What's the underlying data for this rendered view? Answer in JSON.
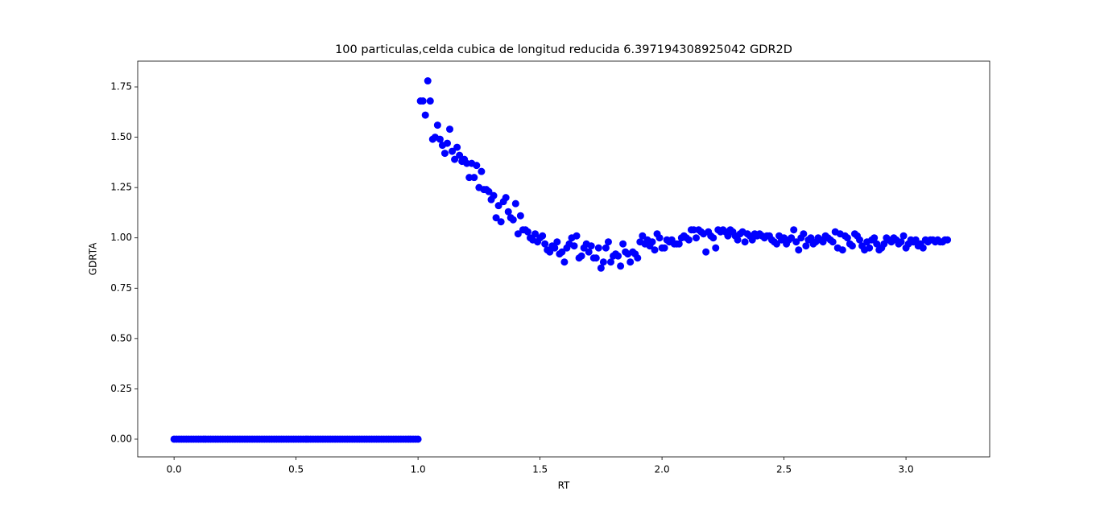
{
  "chart_data": {
    "type": "scatter",
    "title": "100 particulas,celda cubica de longitud reducida 6.397194308925042 GDR2D",
    "x_label": "RT",
    "y_label": "GDRTA",
    "color": "#0000ff",
    "xlim": [
      -0.149,
      3.343
    ],
    "ylim": [
      -0.088,
      1.878
    ],
    "xticks": [
      {
        "value": 0,
        "label": "0.0"
      },
      0.5,
      {
        "value": 1,
        "label": "1.0"
      },
      1.5,
      {
        "value": 2,
        "label": "2.0"
      },
      2.5,
      {
        "value": 3,
        "label": "3.0"
      }
    ],
    "yticks": [
      {
        "value": 0,
        "label": "0.00"
      },
      0.25,
      {
        "value": 0.5,
        "label": "0.50"
      },
      0.75,
      {
        "value": 1,
        "label": "1.00"
      },
      1.25,
      {
        "value": 1.5,
        "label": "1.50"
      },
      1.75
    ],
    "x": [
      0,
      0.01,
      0.02,
      0.03,
      0.04,
      0.05,
      0.06,
      0.07,
      0.08,
      0.09,
      0.1,
      0.11,
      0.12,
      0.13,
      0.14,
      0.15,
      0.16,
      0.17,
      0.18,
      0.19,
      0.2,
      0.21,
      0.22,
      0.23,
      0.24,
      0.25,
      0.26,
      0.27,
      0.28,
      0.29,
      0.3,
      0.31,
      0.32,
      0.33,
      0.34,
      0.35,
      0.36,
      0.37,
      0.38,
      0.39,
      0.4,
      0.41,
      0.42,
      0.43,
      0.44,
      0.45,
      0.46,
      0.47,
      0.48,
      0.49,
      0.5,
      0.51,
      0.52,
      0.53,
      0.54,
      0.55,
      0.56,
      0.57,
      0.58,
      0.59,
      0.6,
      0.61,
      0.62,
      0.63,
      0.64,
      0.65,
      0.66,
      0.67,
      0.68,
      0.69,
      0.7,
      0.71,
      0.72,
      0.73,
      0.74,
      0.75,
      0.76,
      0.77,
      0.78,
      0.79,
      0.8,
      0.81,
      0.82,
      0.83,
      0.84,
      0.85,
      0.86,
      0.87,
      0.88,
      0.89,
      0.9,
      0.91,
      0.92,
      0.93,
      0.94,
      0.95,
      0.96,
      0.97,
      0.98,
      0.99,
      1,
      1.01,
      1.02,
      1.03,
      1.04,
      1.05,
      1.06,
      1.07,
      1.08,
      1.09,
      1.1,
      1.11,
      1.12,
      1.13,
      1.14,
      1.15,
      1.16,
      1.17,
      1.18,
      1.19,
      1.2,
      1.21,
      1.22,
      1.23,
      1.24,
      1.25,
      1.26,
      1.27,
      1.28,
      1.29,
      1.3,
      1.31,
      1.32,
      1.33,
      1.34,
      1.35,
      1.36,
      1.37,
      1.38,
      1.39,
      1.4,
      1.41,
      1.42,
      1.43,
      1.44,
      1.45,
      1.46,
      1.47,
      1.48,
      1.49,
      1.5,
      1.51,
      1.52,
      1.53,
      1.54,
      1.55,
      1.56,
      1.57,
      1.58,
      1.59,
      1.6,
      1.61,
      1.62,
      1.63,
      1.64,
      1.65,
      1.66,
      1.67,
      1.68,
      1.69,
      1.7,
      1.71,
      1.72,
      1.73,
      1.74,
      1.75,
      1.76,
      1.77,
      1.78,
      1.79,
      1.8,
      1.81,
      1.82,
      1.83,
      1.84,
      1.85,
      1.86,
      1.87,
      1.88,
      1.89,
      1.9,
      1.91,
      1.92,
      1.93,
      1.94,
      1.95,
      1.96,
      1.97,
      1.98,
      1.99,
      2,
      2.01,
      2.02,
      2.03,
      2.04,
      2.05,
      2.06,
      2.07,
      2.08,
      2.09,
      2.1,
      2.11,
      2.12,
      2.13,
      2.14,
      2.15,
      2.16,
      2.17,
      2.18,
      2.19,
      2.2,
      2.21,
      2.22,
      2.23,
      2.24,
      2.25,
      2.26,
      2.27,
      2.28,
      2.29,
      2.3,
      2.31,
      2.32,
      2.33,
      2.34,
      2.35,
      2.36,
      2.37,
      2.38,
      2.39,
      2.4,
      2.41,
      2.42,
      2.43,
      2.44,
      2.45,
      2.46,
      2.47,
      2.48,
      2.49,
      2.5,
      2.51,
      2.52,
      2.53,
      2.54,
      2.55,
      2.56,
      2.57,
      2.58,
      2.59,
      2.6,
      2.61,
      2.62,
      2.63,
      2.64,
      2.65,
      2.66,
      2.67,
      2.68,
      2.69,
      2.7,
      2.71,
      2.72,
      2.73,
      2.74,
      2.75,
      2.76,
      2.77,
      2.78,
      2.79,
      2.8,
      2.81,
      2.82,
      2.83,
      2.84,
      2.85,
      2.86,
      2.87,
      2.88,
      2.89,
      2.9,
      2.91,
      2.92,
      2.93,
      2.94,
      2.95,
      2.96,
      2.97,
      2.98,
      2.99,
      3,
      3.01,
      3.02,
      3.03,
      3.04,
      3.05,
      3.06,
      3.07,
      3.08,
      3.09,
      3.1,
      3.11,
      3.12,
      3.13,
      3.14,
      3.15,
      3.16,
      3.17
    ],
    "values": [
      0,
      0,
      0,
      0,
      0,
      0,
      0,
      0,
      0,
      0,
      0,
      0,
      0,
      0,
      0,
      0,
      0,
      0,
      0,
      0,
      0,
      0,
      0,
      0,
      0,
      0,
      0,
      0,
      0,
      0,
      0,
      0,
      0,
      0,
      0,
      0,
      0,
      0,
      0,
      0,
      0,
      0,
      0,
      0,
      0,
      0,
      0,
      0,
      0,
      0,
      0,
      0,
      0,
      0,
      0,
      0,
      0,
      0,
      0,
      0,
      0,
      0,
      0,
      0,
      0,
      0,
      0,
      0,
      0,
      0,
      0,
      0,
      0,
      0,
      0,
      0,
      0,
      0,
      0,
      0,
      0,
      0,
      0,
      0,
      0,
      0,
      0,
      0,
      0,
      0,
      0,
      0,
      0,
      0,
      0,
      0,
      0,
      0,
      0,
      0,
      0,
      1.68,
      1.68,
      1.61,
      1.78,
      1.68,
      1.49,
      1.5,
      1.56,
      1.49,
      1.46,
      1.42,
      1.47,
      1.54,
      1.43,
      1.39,
      1.45,
      1.41,
      1.38,
      1.39,
      1.37,
      1.3,
      1.37,
      1.3,
      1.36,
      1.25,
      1.33,
      1.24,
      1.24,
      1.23,
      1.19,
      1.21,
      1.1,
      1.16,
      1.08,
      1.18,
      1.2,
      1.13,
      1.1,
      1.09,
      1.17,
      1.02,
      1.11,
      1.04,
      1.04,
      1.03,
      1,
      0.99,
      1.02,
      0.98,
      1,
      1.01,
      0.97,
      0.94,
      0.93,
      0.96,
      0.95,
      0.98,
      0.92,
      0.93,
      0.88,
      0.95,
      0.97,
      1,
      0.96,
      1.01,
      0.9,
      0.91,
      0.95,
      0.97,
      0.93,
      0.96,
      0.9,
      0.9,
      0.95,
      0.85,
      0.88,
      0.95,
      0.98,
      0.88,
      0.91,
      0.92,
      0.91,
      0.86,
      0.97,
      0.93,
      0.92,
      0.88,
      0.93,
      0.92,
      0.9,
      0.98,
      1.01,
      0.97,
      0.99,
      0.96,
      0.98,
      0.94,
      1.02,
      1,
      0.95,
      0.95,
      0.99,
      0.98,
      0.99,
      0.97,
      0.97,
      0.97,
      1,
      1.01,
      1,
      0.99,
      1.04,
      1.04,
      1,
      1.04,
      1.03,
      1.02,
      0.93,
      1.03,
      1.01,
      1,
      0.95,
      1.04,
      1.03,
      1.04,
      1.03,
      1.01,
      1.04,
      1.03,
      1.01,
      0.99,
      1.02,
      1.03,
      0.98,
      1.02,
      1.01,
      0.99,
      1.02,
      1.01,
      1.02,
      1.01,
      1,
      1.01,
      1.01,
      0.99,
      0.98,
      0.97,
      1.01,
      0.99,
      1,
      0.97,
      0.99,
      1,
      1.04,
      0.98,
      0.94,
      1,
      1.02,
      0.96,
      0.99,
      1,
      0.97,
      0.98,
      1,
      0.99,
      0.98,
      1.01,
      1,
      0.99,
      0.98,
      1.03,
      0.95,
      1.02,
      0.94,
      1.01,
      1,
      0.97,
      0.96,
      1.02,
      1.01,
      0.99,
      0.96,
      0.94,
      0.98,
      0.95,
      0.99,
      1,
      0.97,
      0.94,
      0.95,
      0.97,
      1,
      0.99,
      0.98,
      1,
      0.99,
      0.97,
      0.98,
      1.01,
      0.95,
      0.97,
      0.99,
      0.98,
      0.99,
      0.96,
      0.97,
      0.95,
      0.99,
      0.98,
      0.99,
      0.99,
      0.98,
      0.99,
      0.98,
      0.98,
      0.99,
      0.99
    ]
  }
}
